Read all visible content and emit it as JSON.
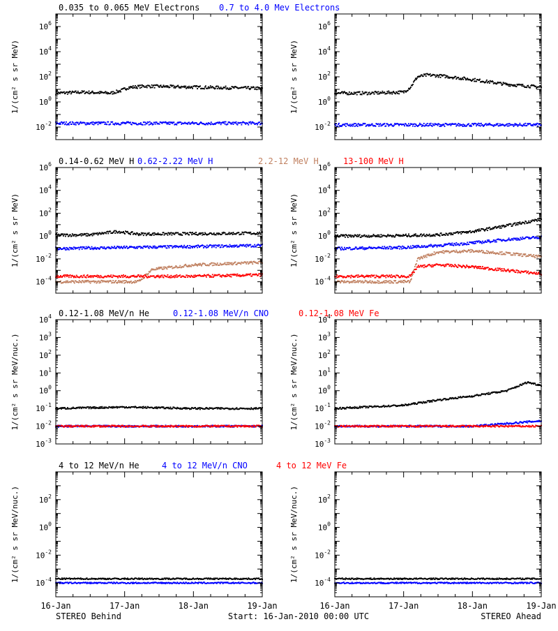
{
  "footer": {
    "left": "STEREO Behind",
    "center": "Start: 16-Jan-2010 00:00 UTC",
    "right": "STEREO Ahead"
  },
  "x_axis": {
    "tick_labels": [
      "16-Jan",
      "17-Jan",
      "18-Jan",
      "19-Jan"
    ],
    "range_days": [
      0,
      3
    ]
  },
  "colors": {
    "black": "#000000",
    "blue": "#0000ff",
    "tan": "#c08060",
    "red": "#ff0000"
  },
  "rows": [
    {
      "legend": [
        {
          "text": "0.035 to 0.065 MeV Electrons",
          "color": "black"
        },
        {
          "text": "0.7 to 4.0 Mev Electrons",
          "color": "blue"
        }
      ],
      "ylabel": "1/(cm² s sr MeV)",
      "ylog_range": [
        -3,
        7
      ],
      "tick_exps": [
        -2,
        0,
        2,
        4,
        6
      ]
    },
    {
      "legend": [
        {
          "text": "0.14-0.62 MeV H",
          "color": "black"
        },
        {
          "text": "0.62-2.22 MeV H",
          "color": "blue"
        },
        {
          "text": "2.2-12 MeV H",
          "color": "tan"
        },
        {
          "text": "13-100 MeV H",
          "color": "red"
        }
      ],
      "ylabel": "1/(cm² s sr MeV)",
      "ylog_range": [
        -5,
        6
      ],
      "tick_exps": [
        -4,
        -2,
        0,
        2,
        4,
        6
      ]
    },
    {
      "legend": [
        {
          "text": "0.12-1.08 MeV/n He",
          "color": "black"
        },
        {
          "text": "0.12-1.08 MeV/n CNO",
          "color": "blue"
        },
        {
          "text": "0.12-1.08 MeV Fe",
          "color": "red"
        }
      ],
      "ylabel": "1/(cm² s sr MeV/nuc.)",
      "ylog_range": [
        -3,
        4
      ],
      "tick_exps": [
        -3,
        -2,
        -1,
        0,
        1,
        2,
        3,
        4
      ]
    },
    {
      "legend": [
        {
          "text": "4 to 12 MeV/n He",
          "color": "black"
        },
        {
          "text": "4 to 12 MeV/n CNO",
          "color": "blue"
        },
        {
          "text": "4 to 12 MeV Fe",
          "color": "red"
        }
      ],
      "ylabel": "1/(cm² s sr MeV/nuc.)",
      "ylog_range": [
        -5,
        4
      ],
      "tick_exps": [
        -4,
        -2,
        0,
        2
      ]
    }
  ],
  "chart_data": [
    {
      "type": "scatter",
      "panel": "row1-behind",
      "yscale": "log",
      "xlabel": "",
      "ylabel": "1/(cm² s sr MeV)",
      "series": [
        {
          "name": "0.035 to 0.065 MeV Electrons",
          "color": "black",
          "x": [
            0,
            0.4,
            0.8,
            0.95,
            1.05,
            1.3,
            2,
            3
          ],
          "y": [
            5,
            6,
            5,
            8,
            14,
            18,
            15,
            12
          ]
        },
        {
          "name": "0.7 to 4.0 Mev Electrons",
          "color": "blue",
          "x": [
            0,
            1,
            2,
            3
          ],
          "y": [
            0.02,
            0.02,
            0.02,
            0.02
          ]
        }
      ]
    },
    {
      "type": "scatter",
      "panel": "row1-ahead",
      "yscale": "log",
      "xlabel": "",
      "ylabel": "1/(cm² s sr MeV)",
      "series": [
        {
          "name": "0.035 to 0.065 MeV Electrons",
          "color": "black",
          "x": [
            0,
            0.5,
            1,
            1.1,
            1.2,
            1.35,
            1.6,
            2,
            2.5,
            3
          ],
          "y": [
            5,
            5,
            6,
            15,
            100,
            140,
            110,
            60,
            25,
            15
          ]
        },
        {
          "name": "0.7 to 4.0 Mev Electrons",
          "color": "blue",
          "x": [
            0,
            1,
            2,
            3
          ],
          "y": [
            0.015,
            0.015,
            0.015,
            0.015
          ]
        }
      ]
    },
    {
      "type": "scatter",
      "panel": "row2-behind",
      "yscale": "log",
      "xlabel": "",
      "ylabel": "1/(cm² s sr MeV)",
      "series": [
        {
          "name": "0.14-0.62 MeV H",
          "color": "black",
          "x": [
            0,
            0.5,
            0.9,
            1.2,
            2,
            3
          ],
          "y": [
            1.2,
            1.3,
            2.5,
            1.5,
            1.6,
            1.8
          ]
        },
        {
          "name": "0.62-2.22 MeV H",
          "color": "blue",
          "x": [
            0,
            1,
            2,
            3
          ],
          "y": [
            0.08,
            0.1,
            0.12,
            0.15
          ]
        },
        {
          "name": "2.2-12 MeV H",
          "color": "tan",
          "x": [
            0,
            1.2,
            1.4,
            2,
            3
          ],
          "y": [
            0.0001,
            0.0001,
            0.0012,
            0.003,
            0.005
          ]
        },
        {
          "name": "13-100 MeV H",
          "color": "red",
          "x": [
            0,
            1,
            2,
            3
          ],
          "y": [
            0.0003,
            0.0003,
            0.0003,
            0.0004
          ]
        }
      ]
    },
    {
      "type": "scatter",
      "panel": "row2-ahead",
      "yscale": "log",
      "xlabel": "",
      "ylabel": "1/(cm² s sr MeV)",
      "series": [
        {
          "name": "0.14-0.62 MeV H",
          "color": "black",
          "x": [
            0,
            1,
            1.5,
            2,
            2.5,
            3
          ],
          "y": [
            1,
            1.1,
            1.3,
            2.5,
            8,
            30
          ]
        },
        {
          "name": "0.62-2.22 MeV H",
          "color": "blue",
          "x": [
            0,
            1,
            1.5,
            2,
            2.5,
            3
          ],
          "y": [
            0.08,
            0.1,
            0.15,
            0.25,
            0.5,
            0.8
          ]
        },
        {
          "name": "2.2-12 MeV H",
          "color": "tan",
          "x": [
            0,
            1.1,
            1.2,
            1.5,
            2,
            2.5,
            3
          ],
          "y": [
            0.0001,
            0.0001,
            0.01,
            0.04,
            0.05,
            0.03,
            0.015
          ]
        },
        {
          "name": "13-100 MeV H",
          "color": "red",
          "x": [
            0,
            1.1,
            1.2,
            1.5,
            2,
            2.5,
            3
          ],
          "y": [
            0.0003,
            0.0003,
            0.002,
            0.003,
            0.002,
            0.001,
            0.0005
          ]
        }
      ]
    },
    {
      "type": "scatter",
      "panel": "row3-behind",
      "yscale": "log",
      "xlabel": "",
      "ylabel": "1/(cm² s sr MeV/nuc.)",
      "series": [
        {
          "name": "0.12-1.08 MeV/n He",
          "color": "black",
          "x": [
            0,
            1,
            2,
            3
          ],
          "y": [
            0.1,
            0.12,
            0.1,
            0.1
          ]
        },
        {
          "name": "0.12-1.08 MeV/n CNO",
          "color": "blue",
          "x": [
            0,
            1,
            2,
            3
          ],
          "y": [
            0.01,
            0.01,
            0.01,
            0.01
          ]
        },
        {
          "name": "0.12-1.08 MeV Fe",
          "color": "red",
          "x": [
            0,
            1,
            2,
            3
          ],
          "y": [
            0.01,
            0.01,
            0.01,
            0.01
          ]
        }
      ]
    },
    {
      "type": "scatter",
      "panel": "row3-ahead",
      "yscale": "log",
      "xlabel": "",
      "ylabel": "1/(cm² s sr MeV/nuc.)",
      "series": [
        {
          "name": "0.12-1.08 MeV/n He",
          "color": "black",
          "x": [
            0,
            1,
            1.5,
            2,
            2.5,
            2.8,
            3
          ],
          "y": [
            0.1,
            0.15,
            0.3,
            0.5,
            1,
            3,
            2
          ]
        },
        {
          "name": "0.12-1.08 MeV/n CNO",
          "color": "blue",
          "x": [
            0,
            1,
            2,
            3
          ],
          "y": [
            0.01,
            0.01,
            0.01,
            0.02
          ]
        },
        {
          "name": "0.12-1.08 MeV Fe",
          "color": "red",
          "x": [
            0,
            1,
            2,
            3
          ],
          "y": [
            0.01,
            0.01,
            0.01,
            0.01
          ]
        }
      ]
    },
    {
      "type": "scatter",
      "panel": "row4-behind",
      "yscale": "log",
      "xlabel": "",
      "ylabel": "1/(cm² s sr MeV/nuc.)",
      "series": [
        {
          "name": "4 to 12 MeV/n He",
          "color": "black",
          "x": [
            0,
            1,
            2,
            3
          ],
          "y": [
            0.0002,
            0.0002,
            0.0002,
            0.0002
          ]
        },
        {
          "name": "4 to 12 MeV/n CNO",
          "color": "blue",
          "x": [
            0,
            1,
            2,
            3
          ],
          "y": [
            0.0001,
            0.0001,
            0.0001,
            0.0001
          ]
        }
      ]
    },
    {
      "type": "scatter",
      "panel": "row4-ahead",
      "yscale": "log",
      "xlabel": "",
      "ylabel": "1/(cm² s sr MeV/nuc.)",
      "series": [
        {
          "name": "4 to 12 MeV/n He",
          "color": "black",
          "x": [
            0,
            1,
            2,
            3
          ],
          "y": [
            0.0002,
            0.0002,
            0.0002,
            0.0002
          ]
        },
        {
          "name": "4 to 12 MeV/n CNO",
          "color": "blue",
          "x": [
            0,
            1,
            2,
            3
          ],
          "y": [
            0.0001,
            0.0001,
            0.0001,
            0.0001
          ]
        }
      ]
    }
  ]
}
